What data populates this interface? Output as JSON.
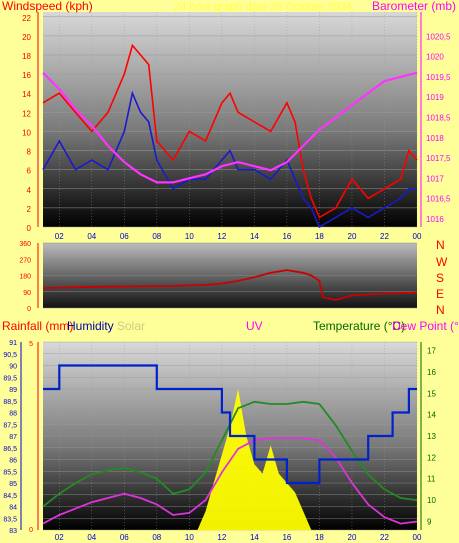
{
  "header": {
    "windspeed_label": "Windspeed (kph)",
    "title": "24 hour graph data 26 October 2024",
    "barometer_label": "Barometer (mb)"
  },
  "compass": [
    "N",
    "W",
    "S",
    "E",
    "N"
  ],
  "lower_header": {
    "rainfall": "Rainfall (mm)",
    "humidity": "Humidity",
    "solar": "Solar",
    "uv": "UV",
    "temperature": "Temperature (°C)",
    "dewpoint": "Dew Point (°C)"
  },
  "colors": {
    "wind_gust": "#ff0000",
    "wind_avg": "#1a1acc",
    "barometer": "#ff33ff",
    "wind_dir": "#cc0000",
    "humidity": "#0022cc",
    "temperature": "#228b22",
    "dewpoint": "#dd33dd",
    "solar": "#ffff00",
    "title": "#ffff44"
  },
  "chart_data": [
    {
      "type": "line",
      "name": "wind-barometer",
      "x_ticks": [
        "02",
        "04",
        "06",
        "08",
        "10",
        "12",
        "14",
        "16",
        "18",
        "20",
        "22",
        "00"
      ],
      "x_range": [
        1.0,
        24.0
      ],
      "y_left_ticks": [
        "0",
        "2",
        "4",
        "6",
        "8",
        "10",
        "12",
        "14",
        "16",
        "18",
        "20",
        "22"
      ],
      "y_left_range": [
        0,
        22.5
      ],
      "y_right_ticks": [
        "1016",
        "1016,5",
        "1017",
        "1017,5",
        "1018",
        "1018,5",
        "1019",
        "1019,5",
        "1020",
        "1020,5"
      ],
      "y_right_range": [
        1015.8,
        1021.1
      ],
      "series": [
        {
          "key": "gust",
          "x": [
            1.0,
            2.0,
            3.0,
            4.0,
            5.0,
            6.0,
            6.5,
            7.0,
            7.5,
            8.0,
            9.0,
            10.0,
            11.0,
            12.0,
            12.5,
            13.0,
            14.0,
            15.0,
            16.0,
            16.5,
            17.0,
            17.5,
            18.0,
            19.0,
            20.0,
            21.0,
            22.0,
            23.0,
            23.5,
            24.0
          ],
          "y": [
            13,
            14,
            12,
            10,
            12,
            16,
            19,
            18,
            17,
            9,
            7,
            10,
            9,
            13,
            14,
            12,
            11,
            10,
            13,
            11,
            6,
            3,
            1,
            2,
            5,
            3,
            4,
            5,
            8,
            7
          ]
        },
        {
          "key": "avg",
          "x": [
            1.0,
            2.0,
            3.0,
            4.0,
            5.0,
            6.0,
            6.5,
            7.0,
            7.5,
            8.0,
            9.0,
            10.0,
            11.0,
            12.0,
            12.5,
            13.0,
            14.0,
            15.0,
            16.0,
            16.5,
            17.0,
            17.5,
            18.0,
            19.0,
            20.0,
            21.0,
            22.0,
            23.0,
            23.5,
            24.0
          ],
          "y": [
            6,
            9,
            6,
            7,
            6,
            10,
            14,
            12,
            11,
            7,
            4,
            5,
            5,
            7,
            8,
            6,
            6,
            5,
            7,
            5,
            3,
            2,
            0,
            1,
            2,
            1,
            2,
            3,
            4,
            4
          ]
        },
        {
          "key": "barometer",
          "x": [
            1.0,
            2.0,
            3.0,
            4.0,
            5.0,
            6.0,
            7.0,
            8.0,
            9.0,
            10.0,
            11.0,
            12.0,
            13.0,
            14.0,
            15.0,
            16.0,
            17.0,
            18.0,
            19.0,
            20.0,
            21.0,
            22.0,
            23.0,
            24.0
          ],
          "y": [
            1019.6,
            1019.2,
            1018.7,
            1018.3,
            1017.8,
            1017.4,
            1017.1,
            1016.9,
            1016.9,
            1017.0,
            1017.1,
            1017.3,
            1017.4,
            1017.3,
            1017.2,
            1017.4,
            1017.8,
            1018.2,
            1018.5,
            1018.8,
            1019.1,
            1019.4,
            1019.5,
            1019.6
          ]
        }
      ]
    },
    {
      "type": "line",
      "name": "wind-direction",
      "y_ticks": [
        "0",
        "90",
        "180",
        "270",
        "360"
      ],
      "y_range": [
        0,
        360
      ],
      "series": [
        {
          "key": "direction",
          "x": [
            1.0,
            3.0,
            5.0,
            7.0,
            9.0,
            11.0,
            12.0,
            13.0,
            14.0,
            15.0,
            16.0,
            17.0,
            17.5,
            18.0,
            18.2,
            19.0,
            20.0,
            22.0,
            24.0
          ],
          "y": [
            110,
            115,
            118,
            120,
            122,
            128,
            135,
            150,
            170,
            195,
            210,
            195,
            180,
            150,
            60,
            45,
            70,
            80,
            85
          ]
        }
      ]
    },
    {
      "type": "line",
      "name": "rain-humidity-temperature",
      "x_ticks": [
        "02",
        "04",
        "06",
        "08",
        "10",
        "12",
        "14",
        "16",
        "18",
        "20",
        "22",
        "00"
      ],
      "humidity_ticks": [
        "83",
        "83,5",
        "84",
        "84,5",
        "85",
        "85,5",
        "86",
        "86,5",
        "87",
        "87,5",
        "88",
        "88,5",
        "89",
        "89,5",
        "90",
        "90,5",
        "91"
      ],
      "humidity_range": [
        83,
        91
      ],
      "rain_ticks": [
        "0",
        "5"
      ],
      "temp_ticks": [
        "9",
        "10",
        "11",
        "12",
        "13",
        "14",
        "15",
        "16",
        "17"
      ],
      "temp_range": [
        8.6,
        17.4
      ],
      "series": [
        {
          "key": "humidity",
          "x": [
            1.0,
            2.0,
            2.0,
            8.0,
            8.0,
            12.0,
            12.0,
            12.5,
            12.5,
            14.0,
            14.0,
            16.0,
            16.0,
            18.0,
            18.0,
            21.0,
            21.0,
            22.5,
            22.5,
            23.5,
            23.5,
            24.0
          ],
          "y": [
            89,
            89,
            90,
            90,
            89,
            89,
            88,
            88,
            87,
            87,
            86,
            86,
            85,
            85,
            86,
            86,
            87,
            87,
            88,
            88,
            89,
            89
          ]
        },
        {
          "key": "temperature",
          "x": [
            1.0,
            2.0,
            3.0,
            4.0,
            5.0,
            6.0,
            7.0,
            8.0,
            9.0,
            10.0,
            11.0,
            12.0,
            13.0,
            14.0,
            15.0,
            16.0,
            17.0,
            18.0,
            19.0,
            20.0,
            21.0,
            22.0,
            23.0,
            24.0
          ],
          "y": [
            9.7,
            10.3,
            10.8,
            11.2,
            11.4,
            11.5,
            11.3,
            11.0,
            10.3,
            10.5,
            11.3,
            12.8,
            14.3,
            14.6,
            14.5,
            14.5,
            14.6,
            14.5,
            13.5,
            12.3,
            11.2,
            10.5,
            10.1,
            10.0
          ]
        },
        {
          "key": "dewpoint",
          "x": [
            1.0,
            2.0,
            3.0,
            4.0,
            5.0,
            6.0,
            7.0,
            8.0,
            9.0,
            10.0,
            11.0,
            12.0,
            13.0,
            14.0,
            15.0,
            16.0,
            17.0,
            18.0,
            19.0,
            20.0,
            21.0,
            22.0,
            23.0,
            24.0
          ],
          "y": [
            8.9,
            9.3,
            9.6,
            9.9,
            10.1,
            10.3,
            10.1,
            9.8,
            9.3,
            9.4,
            10.0,
            11.3,
            12.4,
            12.8,
            12.9,
            12.9,
            12.9,
            12.8,
            12.0,
            10.8,
            9.8,
            9.2,
            8.9,
            9.0
          ]
        },
        {
          "key": "solar",
          "x": [
            10.5,
            11.0,
            11.5,
            12.0,
            12.5,
            13.0,
            13.5,
            14.0,
            14.5,
            15.0,
            15.5,
            16.0,
            16.5,
            17.0,
            17.5
          ],
          "y": [
            0.0,
            0.1,
            0.25,
            0.4,
            0.55,
            0.75,
            0.5,
            0.35,
            0.3,
            0.45,
            0.3,
            0.25,
            0.2,
            0.1,
            0.0
          ]
        }
      ]
    }
  ]
}
